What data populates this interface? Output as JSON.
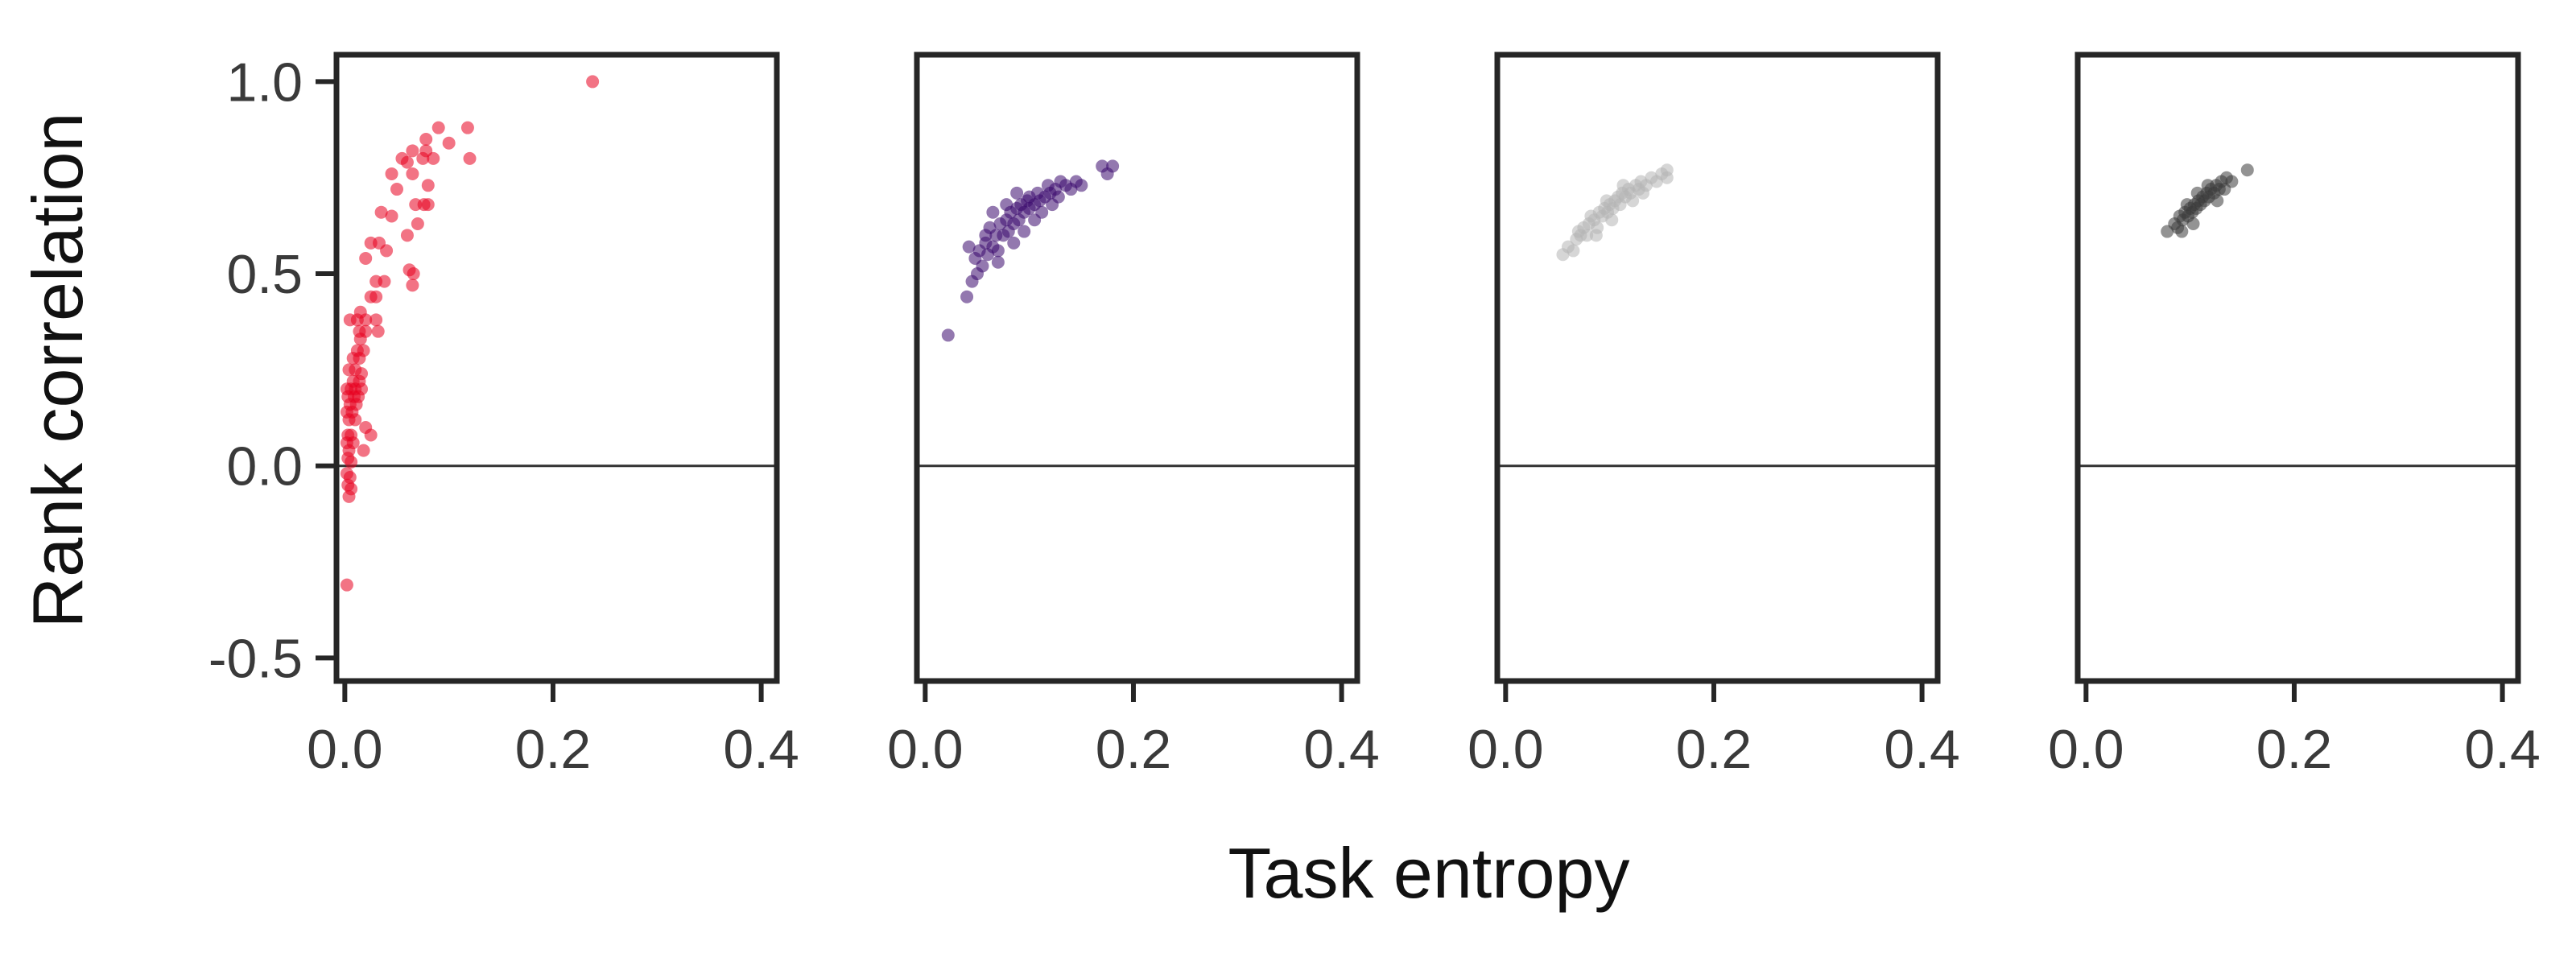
{
  "figure": {
    "xlabel": "Task entropy",
    "ylabel": "Rank correlation"
  },
  "chart_data": [
    {
      "type": "scatter",
      "color": "#e8001f",
      "xlim": [
        -0.008,
        0.415
      ],
      "ylim": [
        -0.56,
        1.07
      ],
      "xticks": [
        "0.0",
        "0.2",
        "0.4"
      ],
      "yticks": [
        "1.0",
        "0.5",
        "0.0",
        "-0.5"
      ],
      "hline": 0.0,
      "points": [
        [
          0.238,
          1.0
        ],
        [
          0.09,
          0.88
        ],
        [
          0.118,
          0.88
        ],
        [
          0.078,
          0.85
        ],
        [
          0.1,
          0.84
        ],
        [
          0.078,
          0.82
        ],
        [
          0.065,
          0.82
        ],
        [
          0.075,
          0.8
        ],
        [
          0.085,
          0.8
        ],
        [
          0.12,
          0.8
        ],
        [
          0.055,
          0.8
        ],
        [
          0.06,
          0.79
        ],
        [
          0.065,
          0.76
        ],
        [
          0.045,
          0.76
        ],
        [
          0.08,
          0.73
        ],
        [
          0.05,
          0.72
        ],
        [
          0.068,
          0.68
        ],
        [
          0.076,
          0.68
        ],
        [
          0.08,
          0.68
        ],
        [
          0.035,
          0.66
        ],
        [
          0.045,
          0.65
        ],
        [
          0.07,
          0.63
        ],
        [
          0.06,
          0.6
        ],
        [
          0.025,
          0.58
        ],
        [
          0.033,
          0.58
        ],
        [
          0.04,
          0.56
        ],
        [
          0.02,
          0.54
        ],
        [
          0.062,
          0.51
        ],
        [
          0.066,
          0.5
        ],
        [
          0.03,
          0.48
        ],
        [
          0.038,
          0.48
        ],
        [
          0.065,
          0.47
        ],
        [
          0.025,
          0.44
        ],
        [
          0.03,
          0.44
        ],
        [
          0.015,
          0.4
        ],
        [
          0.005,
          0.38
        ],
        [
          0.012,
          0.38
        ],
        [
          0.02,
          0.38
        ],
        [
          0.03,
          0.38
        ],
        [
          0.014,
          0.35
        ],
        [
          0.02,
          0.35
        ],
        [
          0.032,
          0.35
        ],
        [
          0.015,
          0.33
        ],
        [
          0.012,
          0.3
        ],
        [
          0.018,
          0.3
        ],
        [
          0.008,
          0.28
        ],
        [
          0.014,
          0.28
        ],
        [
          0.004,
          0.25
        ],
        [
          0.01,
          0.25
        ],
        [
          0.016,
          0.24
        ],
        [
          0.008,
          0.22
        ],
        [
          0.014,
          0.22
        ],
        [
          0.002,
          0.2
        ],
        [
          0.006,
          0.2
        ],
        [
          0.01,
          0.2
        ],
        [
          0.016,
          0.2
        ],
        [
          0.003,
          0.18
        ],
        [
          0.009,
          0.18
        ],
        [
          0.013,
          0.18
        ],
        [
          0.005,
          0.16
        ],
        [
          0.011,
          0.16
        ],
        [
          0.002,
          0.14
        ],
        [
          0.007,
          0.14
        ],
        [
          0.004,
          0.12
        ],
        [
          0.01,
          0.12
        ],
        [
          0.02,
          0.1
        ],
        [
          0.003,
          0.08
        ],
        [
          0.006,
          0.08
        ],
        [
          0.025,
          0.08
        ],
        [
          0.002,
          0.06
        ],
        [
          0.008,
          0.06
        ],
        [
          0.004,
          0.04
        ],
        [
          0.018,
          0.04
        ],
        [
          0.003,
          0.02
        ],
        [
          0.006,
          0.01
        ],
        [
          0.002,
          -0.02
        ],
        [
          0.005,
          -0.03
        ],
        [
          0.003,
          -0.05
        ],
        [
          0.006,
          -0.06
        ],
        [
          0.004,
          -0.08
        ],
        [
          0.002,
          -0.31
        ]
      ]
    },
    {
      "type": "scatter",
      "color": "#3b0a6e",
      "xlim": [
        -0.008,
        0.415
      ],
      "ylim": [
        -0.56,
        1.07
      ],
      "xticks": [
        "0.0",
        "0.2",
        "0.4"
      ],
      "yticks": [],
      "hline": 0.0,
      "points": [
        [
          0.022,
          0.34
        ],
        [
          0.04,
          0.44
        ],
        [
          0.045,
          0.48
        ],
        [
          0.05,
          0.5
        ],
        [
          0.042,
          0.57
        ],
        [
          0.055,
          0.52
        ],
        [
          0.06,
          0.55
        ],
        [
          0.052,
          0.56
        ],
        [
          0.058,
          0.58
        ],
        [
          0.065,
          0.57
        ],
        [
          0.07,
          0.56
        ],
        [
          0.068,
          0.6
        ],
        [
          0.062,
          0.62
        ],
        [
          0.075,
          0.6
        ],
        [
          0.072,
          0.63
        ],
        [
          0.08,
          0.61
        ],
        [
          0.078,
          0.64
        ],
        [
          0.085,
          0.63
        ],
        [
          0.082,
          0.66
        ],
        [
          0.09,
          0.64
        ],
        [
          0.088,
          0.67
        ],
        [
          0.095,
          0.66
        ],
        [
          0.092,
          0.68
        ],
        [
          0.1,
          0.67
        ],
        [
          0.098,
          0.69
        ],
        [
          0.105,
          0.68
        ],
        [
          0.1,
          0.7
        ],
        [
          0.11,
          0.69
        ],
        [
          0.108,
          0.71
        ],
        [
          0.115,
          0.7
        ],
        [
          0.12,
          0.71
        ],
        [
          0.118,
          0.73
        ],
        [
          0.125,
          0.72
        ],
        [
          0.13,
          0.74
        ],
        [
          0.128,
          0.7
        ],
        [
          0.135,
          0.73
        ],
        [
          0.14,
          0.72
        ],
        [
          0.145,
          0.74
        ],
        [
          0.15,
          0.73
        ],
        [
          0.175,
          0.76
        ],
        [
          0.17,
          0.78
        ],
        [
          0.18,
          0.78
        ],
        [
          0.065,
          0.66
        ],
        [
          0.07,
          0.53
        ],
        [
          0.085,
          0.58
        ],
        [
          0.095,
          0.61
        ],
        [
          0.105,
          0.64
        ],
        [
          0.112,
          0.66
        ],
        [
          0.122,
          0.68
        ],
        [
          0.078,
          0.68
        ],
        [
          0.088,
          0.71
        ],
        [
          0.058,
          0.6
        ],
        [
          0.048,
          0.54
        ]
      ]
    },
    {
      "type": "scatter",
      "color": "#b5b5b5",
      "xlim": [
        -0.008,
        0.415
      ],
      "ylim": [
        -0.56,
        1.07
      ],
      "xticks": [
        "0.0",
        "0.2",
        "0.4"
      ],
      "yticks": [],
      "hline": 0.0,
      "points": [
        [
          0.055,
          0.55
        ],
        [
          0.06,
          0.57
        ],
        [
          0.065,
          0.56
        ],
        [
          0.068,
          0.59
        ],
        [
          0.072,
          0.6
        ],
        [
          0.075,
          0.62
        ],
        [
          0.078,
          0.6
        ],
        [
          0.08,
          0.63
        ],
        [
          0.085,
          0.64
        ],
        [
          0.088,
          0.62
        ],
        [
          0.09,
          0.66
        ],
        [
          0.093,
          0.65
        ],
        [
          0.095,
          0.67
        ],
        [
          0.098,
          0.66
        ],
        [
          0.1,
          0.68
        ],
        [
          0.103,
          0.67
        ],
        [
          0.105,
          0.69
        ],
        [
          0.108,
          0.7
        ],
        [
          0.11,
          0.68
        ],
        [
          0.112,
          0.71
        ],
        [
          0.115,
          0.7
        ],
        [
          0.118,
          0.72
        ],
        [
          0.12,
          0.71
        ],
        [
          0.125,
          0.73
        ],
        [
          0.128,
          0.72
        ],
        [
          0.13,
          0.74
        ],
        [
          0.135,
          0.73
        ],
        [
          0.14,
          0.75
        ],
        [
          0.145,
          0.74
        ],
        [
          0.15,
          0.76
        ],
        [
          0.155,
          0.77
        ],
        [
          0.155,
          0.75
        ],
        [
          0.07,
          0.61
        ],
        [
          0.082,
          0.65
        ],
        [
          0.097,
          0.69
        ],
        [
          0.113,
          0.73
        ],
        [
          0.122,
          0.69
        ],
        [
          0.087,
          0.6
        ],
        [
          0.102,
          0.64
        ],
        [
          0.132,
          0.71
        ]
      ]
    },
    {
      "type": "scatter",
      "color": "#3a3a3a",
      "xlim": [
        -0.008,
        0.415
      ],
      "ylim": [
        -0.56,
        1.07
      ],
      "xticks": [
        "0.0",
        "0.2",
        "0.4"
      ],
      "yticks": [],
      "hline": 0.0,
      "points": [
        [
          0.078,
          0.61
        ],
        [
          0.085,
          0.63
        ],
        [
          0.088,
          0.62
        ],
        [
          0.09,
          0.65
        ],
        [
          0.093,
          0.64
        ],
        [
          0.095,
          0.66
        ],
        [
          0.098,
          0.65
        ],
        [
          0.1,
          0.67
        ],
        [
          0.102,
          0.66
        ],
        [
          0.104,
          0.68
        ],
        [
          0.106,
          0.67
        ],
        [
          0.108,
          0.69
        ],
        [
          0.11,
          0.68
        ],
        [
          0.112,
          0.7
        ],
        [
          0.114,
          0.69
        ],
        [
          0.116,
          0.71
        ],
        [
          0.118,
          0.7
        ],
        [
          0.12,
          0.72
        ],
        [
          0.123,
          0.71
        ],
        [
          0.125,
          0.73
        ],
        [
          0.128,
          0.72
        ],
        [
          0.13,
          0.74
        ],
        [
          0.135,
          0.75
        ],
        [
          0.14,
          0.74
        ],
        [
          0.155,
          0.77
        ],
        [
          0.097,
          0.68
        ],
        [
          0.107,
          0.71
        ],
        [
          0.117,
          0.73
        ],
        [
          0.092,
          0.61
        ],
        [
          0.103,
          0.63
        ],
        [
          0.126,
          0.69
        ],
        [
          0.133,
          0.72
        ]
      ]
    }
  ]
}
